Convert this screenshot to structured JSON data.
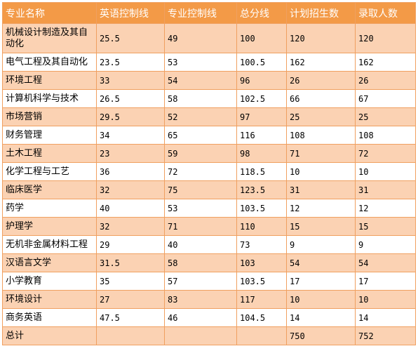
{
  "table": {
    "headers": [
      "专业名称",
      "英语控制线",
      "专业控制线",
      "总分线",
      "计划招生数",
      "录取人数"
    ],
    "rows": [
      [
        "机械设计制造及其自动化",
        "25.5",
        "49",
        "100",
        "120",
        "120"
      ],
      [
        "电气工程及其自动化",
        "23.5",
        "53",
        "100.5",
        "162",
        "162"
      ],
      [
        "环境工程",
        "33",
        "54",
        "96",
        "26",
        "26"
      ],
      [
        "计算机科学与技术",
        "26.5",
        "58",
        "102.5",
        "66",
        "67"
      ],
      [
        "市场营销",
        "29.5",
        "52",
        "97",
        "25",
        "25"
      ],
      [
        "财务管理",
        "34",
        "65",
        "116",
        "108",
        "108"
      ],
      [
        "土木工程",
        "23",
        "59",
        "98",
        "71",
        "72"
      ],
      [
        "化学工程与工艺",
        "36",
        "72",
        "118.5",
        "10",
        "10"
      ],
      [
        "临床医学",
        "32",
        "75",
        "123.5",
        "31",
        "31"
      ],
      [
        "药学",
        "40",
        "53",
        "103.5",
        "12",
        "12"
      ],
      [
        "护理学",
        "32",
        "71",
        "110",
        "15",
        "15"
      ],
      [
        "无机非金属材料工程",
        "29",
        "40",
        "73",
        "9",
        "9"
      ],
      [
        "汉语言文学",
        "31.5",
        "58",
        "103",
        "54",
        "54"
      ],
      [
        "小学教育",
        "35",
        "57",
        "103.5",
        "17",
        "17"
      ],
      [
        "环境设计",
        "27",
        "83",
        "117",
        "10",
        "10"
      ],
      [
        "商务英语",
        "47.5",
        "46",
        "104.5",
        "14",
        "14"
      ],
      [
        "总计",
        "",
        "",
        "",
        "750",
        "752"
      ]
    ]
  }
}
